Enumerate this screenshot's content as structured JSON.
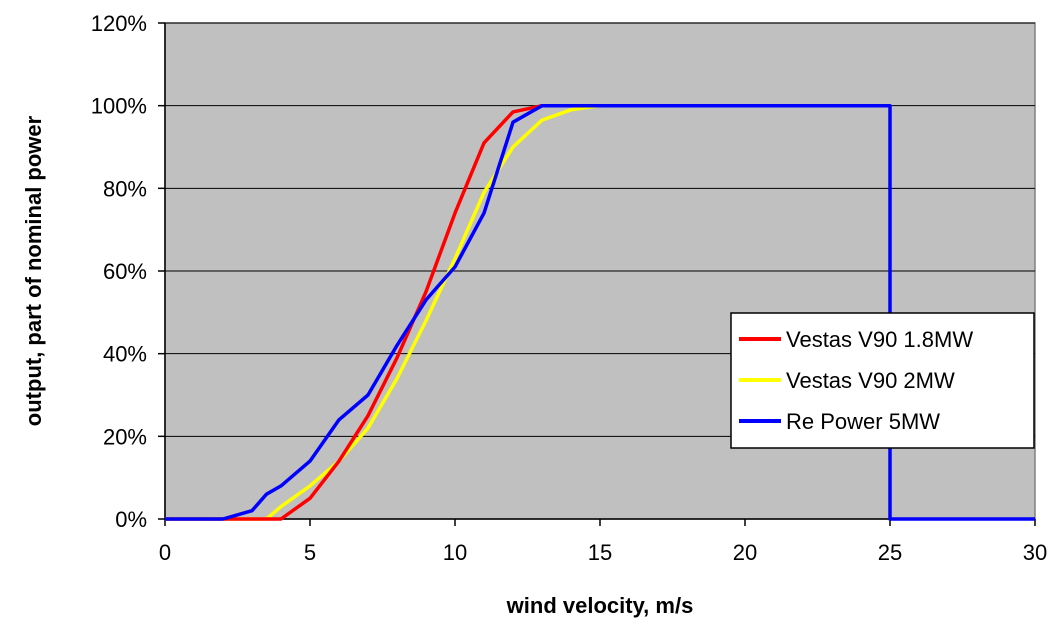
{
  "chart_data": {
    "type": "line",
    "title": "",
    "xlabel": "wind velocity, m/s",
    "ylabel": "output, part of nominal power",
    "xlim": [
      0,
      30
    ],
    "ylim": [
      0,
      1.2
    ],
    "x_ticks": [
      "0",
      "5",
      "10",
      "15",
      "20",
      "25",
      "30"
    ],
    "y_ticks": [
      "0%",
      "20%",
      "40%",
      "60%",
      "80%",
      "100%",
      "120%"
    ],
    "grid": true,
    "plot_background": "#c0c0c0",
    "legend_position": "right",
    "series": [
      {
        "name": "Vestas V90 1.8MW",
        "color": "#ff0000",
        "points": [
          [
            0,
            0
          ],
          [
            3.8,
            0
          ],
          [
            4,
            0
          ],
          [
            5,
            0.05
          ],
          [
            6,
            0.14
          ],
          [
            7,
            0.25
          ],
          [
            8,
            0.39
          ],
          [
            9,
            0.55
          ],
          [
            10,
            0.74
          ],
          [
            11,
            0.91
          ],
          [
            12,
            0.985
          ],
          [
            13,
            1.0
          ],
          [
            23,
            1.0
          ]
        ]
      },
      {
        "name": "Vestas V90 2MW",
        "color": "#ffff00",
        "points": [
          [
            0,
            0
          ],
          [
            3.5,
            0
          ],
          [
            4,
            0.03
          ],
          [
            5,
            0.08
          ],
          [
            6,
            0.14
          ],
          [
            7,
            0.22
          ],
          [
            8,
            0.34
          ],
          [
            9,
            0.48
          ],
          [
            10,
            0.63
          ],
          [
            11,
            0.79
          ],
          [
            12,
            0.9
          ],
          [
            13,
            0.965
          ],
          [
            14,
            0.99
          ],
          [
            15,
            1.0
          ],
          [
            23,
            1.0
          ]
        ]
      },
      {
        "name": "Re Power 5MW",
        "color": "#0000ff",
        "points": [
          [
            0,
            0
          ],
          [
            2,
            0
          ],
          [
            3,
            0.02
          ],
          [
            3.5,
            0.06
          ],
          [
            4,
            0.08
          ],
          [
            5,
            0.14
          ],
          [
            6,
            0.24
          ],
          [
            7,
            0.3
          ],
          [
            8,
            0.42
          ],
          [
            9,
            0.53
          ],
          [
            10,
            0.61
          ],
          [
            11,
            0.74
          ],
          [
            12,
            0.96
          ],
          [
            13,
            1.0
          ],
          [
            25,
            1.0
          ],
          [
            25,
            0
          ],
          [
            30,
            0
          ]
        ]
      }
    ]
  }
}
